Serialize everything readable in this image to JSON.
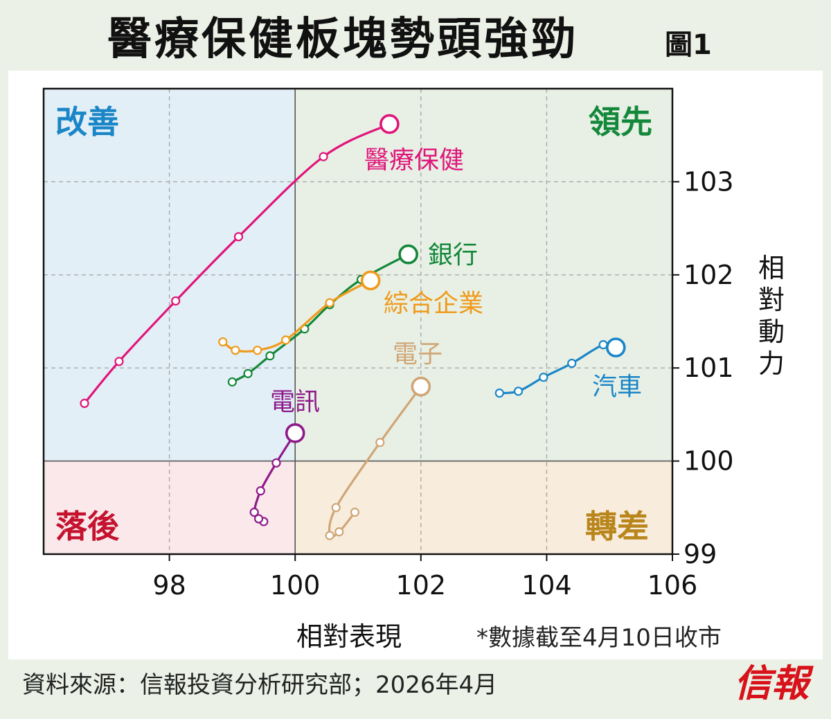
{
  "title": "醫療保健板塊勢頭強勁",
  "figure_label": "圖1",
  "colors": {
    "background": "#ebf1e6",
    "improving_bg": "#e3eff7",
    "leading_bg": "#e8f0e6",
    "lagging_bg": "#fae8ea",
    "weakening_bg": "#f8ecdc"
  },
  "chart_data": {
    "type": "scatter",
    "title": "醫療保健板塊勢頭強勁",
    "xlabel": "相對表現",
    "ylabel": "相對動力",
    "xlim": [
      96,
      106
    ],
    "ylim": [
      99,
      104
    ],
    "xticks": [
      "98",
      "100",
      "102",
      "104",
      "106"
    ],
    "yticks": [
      "99",
      "100",
      "101",
      "102",
      "103"
    ],
    "grid": true,
    "quadrants": [
      {
        "name": "改善",
        "color": "#1a86c7",
        "bg": "#e3eff7"
      },
      {
        "name": "領先",
        "color": "#14883a",
        "bg": "#e8f0e6"
      },
      {
        "name": "落後",
        "color": "#c4122f",
        "bg": "#fae8ea"
      },
      {
        "name": "轉差",
        "color": "#b9861c",
        "bg": "#f8ecdc"
      }
    ],
    "series": [
      {
        "name": "醫療保健",
        "color": "#e0157a",
        "x": [
          96.65,
          97.2,
          98.1,
          99.1,
          100.45,
          101.5
        ],
        "y": [
          100.62,
          101.07,
          101.72,
          102.41,
          103.27,
          103.62
        ]
      },
      {
        "name": "銀行",
        "color": "#14883a",
        "x": [
          99.0,
          99.25,
          99.6,
          100.15,
          100.55,
          101.05,
          101.8
        ],
        "y": [
          100.85,
          100.94,
          101.13,
          101.42,
          101.68,
          101.95,
          102.22
        ]
      },
      {
        "name": "綜合企業",
        "color": "#ef9a1a",
        "x": [
          98.85,
          99.05,
          99.4,
          99.85,
          100.55,
          101.2
        ],
        "y": [
          101.28,
          101.19,
          101.19,
          101.3,
          101.7,
          101.94
        ]
      },
      {
        "name": "汽車",
        "color": "#1a86c7",
        "x": [
          103.25,
          103.55,
          103.95,
          104.4,
          104.9,
          105.1
        ],
        "y": [
          100.73,
          100.75,
          100.9,
          101.05,
          101.25,
          101.22
        ]
      },
      {
        "name": "電子",
        "color": "#cfa676",
        "x": [
          100.95,
          100.7,
          100.55,
          100.65,
          101.35,
          102.0
        ],
        "y": [
          99.45,
          99.24,
          99.2,
          99.5,
          100.2,
          100.8
        ]
      },
      {
        "name": "電訊",
        "color": "#8e1a8a",
        "x": [
          99.5,
          99.42,
          99.35,
          99.45,
          99.7,
          100.0
        ],
        "y": [
          99.35,
          99.38,
          99.45,
          99.68,
          99.98,
          100.3
        ]
      }
    ]
  },
  "note": "*數據截至4月10日收市",
  "source": "資料來源：信報投資分析研究部；2026年4月",
  "logo": "信報"
}
